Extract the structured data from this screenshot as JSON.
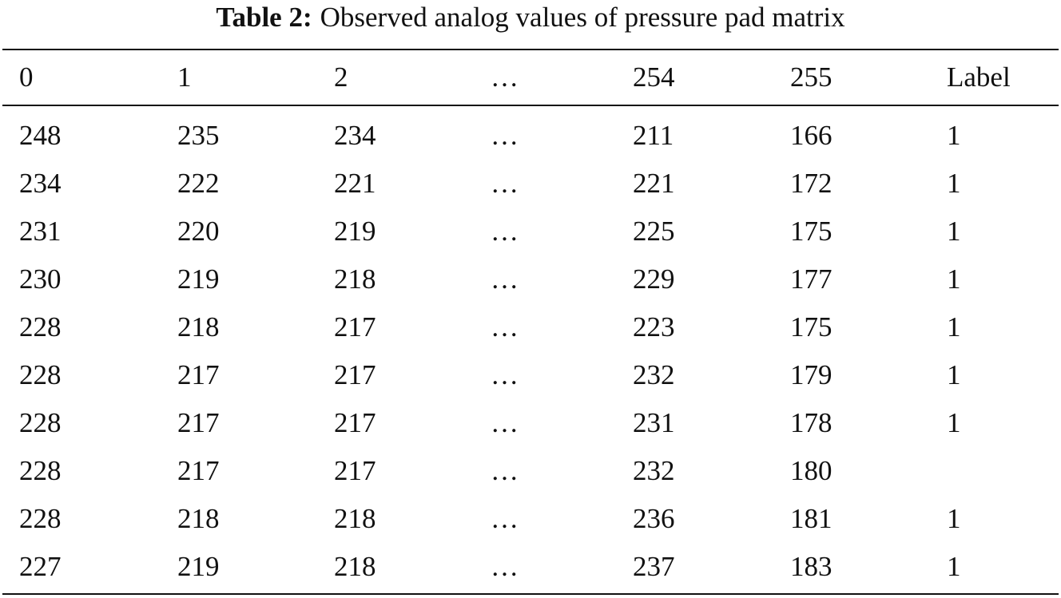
{
  "caption": {
    "label": "Table 2:",
    "text": "Observed analog values of pressure pad matrix"
  },
  "table": {
    "headers": [
      "0",
      "1",
      "2",
      "…",
      "254",
      "255",
      "Label"
    ],
    "rows": [
      [
        "248",
        "235",
        "234",
        "…",
        "211",
        "166",
        "1"
      ],
      [
        "234",
        "222",
        "221",
        "…",
        "221",
        "172",
        "1"
      ],
      [
        "231",
        "220",
        "219",
        "…",
        "225",
        "175",
        "1"
      ],
      [
        "230",
        "219",
        "218",
        "…",
        "229",
        "177",
        "1"
      ],
      [
        "228",
        "218",
        "217",
        "…",
        "223",
        "175",
        "1"
      ],
      [
        "228",
        "217",
        "217",
        "…",
        "232",
        "179",
        "1"
      ],
      [
        "228",
        "217",
        "217",
        "…",
        "231",
        "178",
        "1"
      ],
      [
        "228",
        "217",
        "217",
        "…",
        "232",
        "180",
        ""
      ],
      [
        "228",
        "218",
        "218",
        "…",
        "236",
        "181",
        "1"
      ],
      [
        "227",
        "219",
        "218",
        "…",
        "237",
        "183",
        "1"
      ]
    ]
  }
}
